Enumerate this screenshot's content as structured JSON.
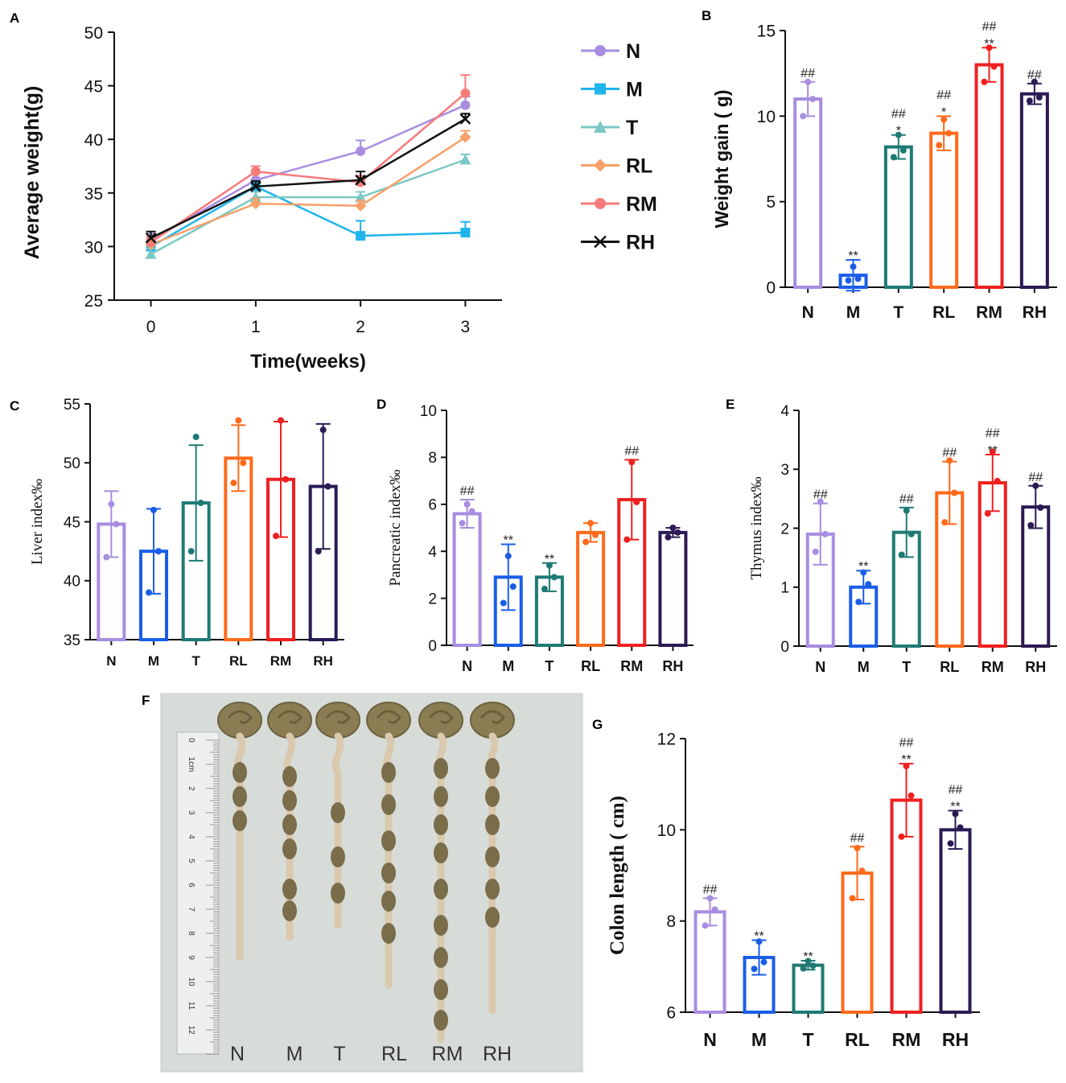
{
  "panel_labels": {
    "A": "A",
    "B": "B",
    "C": "C",
    "D": "D",
    "E": "E",
    "F": "F",
    "G": "G"
  },
  "colors": {
    "N": "#a88de0",
    "M": "#1a5ee8",
    "T": "#1f7a74",
    "RL": "#ff6a1a",
    "RM": "#ef2020",
    "RH": "#2b1a55"
  },
  "chart_data": [
    {
      "id": "A",
      "type": "line",
      "xlabel": "Time(weeks)",
      "ylabel": "Average  weight(g)",
      "x": [
        0,
        1,
        2,
        3
      ],
      "xlim": [
        -0.35,
        3.35
      ],
      "ylim": [
        25,
        50
      ],
      "yticks": [
        25,
        30,
        35,
        40,
        45,
        50
      ],
      "xticks": [
        0,
        1,
        2,
        3
      ],
      "series": [
        {
          "name": "N",
          "marker": "circle",
          "color": "#a88de0",
          "values": [
            30.6,
            36.2,
            38.9,
            43.2
          ],
          "err": [
            0.6,
            0.8,
            1.0,
            0.8
          ]
        },
        {
          "name": "M",
          "marker": "square",
          "color": "#1fb4ea",
          "values": [
            30.0,
            35.6,
            31.0,
            31.3
          ],
          "err": [
            0.6,
            0.5,
            1.4,
            1.0
          ]
        },
        {
          "name": "T",
          "marker": "triangle",
          "color": "#7cc8c4",
          "values": [
            29.3,
            34.6,
            34.6,
            38.1
          ],
          "err": [
            0.5,
            0.5,
            0.5,
            0.5
          ]
        },
        {
          "name": "RL",
          "marker": "diamond",
          "color": "#f7a06a",
          "values": [
            30.2,
            34.0,
            33.8,
            40.2
          ],
          "err": [
            0.5,
            0.5,
            0.5,
            0.6
          ]
        },
        {
          "name": "RM",
          "marker": "circle",
          "color": "#f57b7b",
          "values": [
            30.4,
            37.0,
            36.0,
            44.3
          ],
          "err": [
            0.5,
            0.5,
            0.6,
            1.7
          ]
        },
        {
          "name": "RH",
          "marker": "x",
          "color": "#111111",
          "values": [
            30.8,
            35.6,
            36.2,
            41.9
          ],
          "err": [
            0.6,
            0.5,
            0.8,
            0.5
          ]
        }
      ]
    },
    {
      "id": "B",
      "type": "bar",
      "ylabel": "Weight gain ( g)",
      "categories": [
        "N",
        "M",
        "T",
        "RL",
        "RM",
        "RH"
      ],
      "values": [
        11.0,
        0.7,
        8.2,
        9.0,
        13.0,
        11.3
      ],
      "err": [
        1.0,
        0.9,
        0.7,
        1.0,
        1.0,
        0.6
      ],
      "points": [
        [
          12.0,
          11.0,
          10.0
        ],
        [
          1.2,
          0.5,
          0.4
        ],
        [
          8.9,
          8.0,
          7.6
        ],
        [
          9.8,
          9.0,
          8.3
        ],
        [
          14.0,
          12.9,
          12.0
        ],
        [
          12.0,
          11.1,
          10.9
        ]
      ],
      "ylim": [
        0,
        15
      ],
      "yticks": [
        0,
        5,
        10,
        15
      ],
      "annotations": [
        [
          "##"
        ],
        [
          "**"
        ],
        [
          "##",
          "*"
        ],
        [
          "##",
          "*"
        ],
        [
          "##",
          "**"
        ],
        [
          "##"
        ]
      ]
    },
    {
      "id": "C",
      "type": "bar",
      "ylabel": "Liver index‰",
      "categories": [
        "N",
        "M",
        "T",
        "RL",
        "RM",
        "RH"
      ],
      "values": [
        44.8,
        42.5,
        46.6,
        50.4,
        48.6,
        48.0
      ],
      "err": [
        2.8,
        3.6,
        4.9,
        2.8,
        4.9,
        5.3
      ],
      "points": [
        [
          46.5,
          44.8,
          42.0
        ],
        [
          46.0,
          42.5,
          39.0
        ],
        [
          52.2,
          46.6,
          42.5
        ],
        [
          53.6,
          50.0,
          48.3
        ],
        [
          53.6,
          48.6,
          43.8
        ],
        [
          52.8,
          48.0,
          42.5
        ]
      ],
      "ylim": [
        35,
        55
      ],
      "yticks": [
        35,
        40,
        45,
        50,
        55
      ],
      "annotations": [
        [],
        [],
        [],
        [],
        [],
        []
      ]
    },
    {
      "id": "D",
      "type": "bar",
      "ylabel": "Pancreatic index‰",
      "categories": [
        "N",
        "M",
        "T",
        "RL",
        "RM",
        "RH"
      ],
      "values": [
        5.6,
        2.9,
        2.9,
        4.8,
        6.2,
        4.8
      ],
      "err": [
        0.6,
        1.4,
        0.6,
        0.4,
        1.7,
        0.2
      ],
      "points": [
        [
          6.0,
          5.7,
          5.2
        ],
        [
          3.8,
          2.5,
          1.8
        ],
        [
          3.4,
          2.9,
          2.4
        ],
        [
          5.2,
          4.7,
          4.4
        ],
        [
          7.8,
          6.1,
          4.5
        ],
        [
          5.0,
          4.8,
          4.6
        ]
      ],
      "ylim": [
        0,
        10
      ],
      "yticks": [
        0,
        2,
        4,
        6,
        8,
        10
      ],
      "annotations": [
        [
          "##"
        ],
        [
          "**"
        ],
        [
          "**"
        ],
        [],
        [
          "##"
        ],
        []
      ]
    },
    {
      "id": "E",
      "type": "bar",
      "ylabel": "Thymus index‰",
      "categories": [
        "N",
        "M",
        "T",
        "RL",
        "RM",
        "RH"
      ],
      "values": [
        1.9,
        1.0,
        1.93,
        2.6,
        2.77,
        2.36
      ],
      "err": [
        0.52,
        0.28,
        0.42,
        0.53,
        0.48,
        0.36
      ],
      "points": [
        [
          2.45,
          1.9,
          1.6
        ],
        [
          1.25,
          1.05,
          0.75
        ],
        [
          2.3,
          1.9,
          1.55
        ],
        [
          3.15,
          2.6,
          2.1
        ],
        [
          3.3,
          2.8,
          2.25
        ],
        [
          2.72,
          2.35,
          2.05
        ]
      ],
      "ylim": [
        0,
        4
      ],
      "yticks": [
        0,
        1,
        2,
        3,
        4
      ],
      "annotations": [
        [
          "##"
        ],
        [
          "**"
        ],
        [
          "##"
        ],
        [
          "##"
        ],
        [
          "##",
          "**"
        ],
        [
          "##"
        ]
      ]
    },
    {
      "id": "G",
      "type": "bar",
      "ylabel": "Colon length ( cm)",
      "categories": [
        "N",
        "M",
        "T",
        "RL",
        "RM",
        "RH"
      ],
      "values": [
        8.2,
        7.2,
        7.03,
        9.05,
        10.65,
        10.0
      ],
      "err": [
        0.3,
        0.38,
        0.1,
        0.58,
        0.8,
        0.42
      ],
      "points": [
        [
          8.5,
          8.25,
          7.9
        ],
        [
          7.55,
          7.1,
          6.95
        ],
        [
          7.12,
          7.02,
          6.96
        ],
        [
          9.6,
          9.1,
          8.5
        ],
        [
          11.4,
          10.75,
          9.85
        ],
        [
          10.35,
          10.05,
          9.7
        ]
      ],
      "ylim": [
        6,
        12
      ],
      "yticks": [
        6,
        8,
        10,
        12
      ],
      "annotations": [
        [
          "##"
        ],
        [
          "**"
        ],
        [
          "**"
        ],
        [
          "##"
        ],
        [
          "##",
          "**"
        ],
        [
          "##",
          "**"
        ]
      ]
    }
  ],
  "photo": {
    "labels": [
      "N",
      "M",
      "T",
      "RL",
      "RM",
      "RH"
    ],
    "ruler_numbers": [
      "0",
      "1cm",
      "2",
      "3",
      "4",
      "5",
      "6",
      "7",
      "8",
      "9",
      "10",
      "11",
      "12"
    ]
  }
}
